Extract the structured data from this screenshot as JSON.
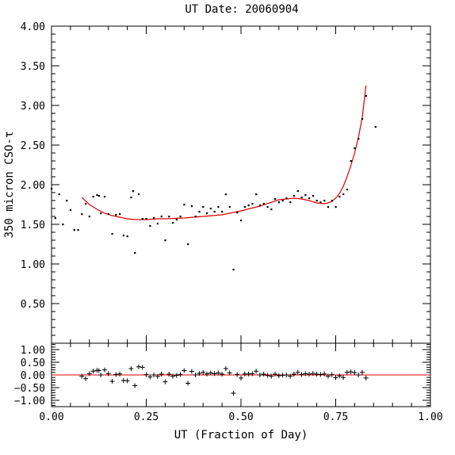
{
  "chart_data": [
    {
      "type": "scatter",
      "panel": "main",
      "title": "UT Date: 20060904",
      "xlabel": "",
      "ylabel": "350 micron CSO-τ",
      "xlim": [
        0.0,
        1.0
      ],
      "ylim": [
        0.0,
        4.0
      ],
      "yticks": [
        "0.50",
        "1.00",
        "1.50",
        "2.00",
        "2.50",
        "3.00",
        "3.50",
        "4.00"
      ],
      "grid": false,
      "colors": {
        "points": "#000000",
        "fit": "#e00000"
      },
      "series": [
        {
          "kind": "points",
          "x": [
            0.0,
            0.01,
            0.02,
            0.03,
            0.04,
            0.05,
            0.06,
            0.07,
            0.08,
            0.09,
            0.1,
            0.11,
            0.12,
            0.125,
            0.13,
            0.14,
            0.15,
            0.16,
            0.17,
            0.18,
            0.19,
            0.2,
            0.21,
            0.215,
            0.22,
            0.23,
            0.24,
            0.25,
            0.26,
            0.27,
            0.28,
            0.29,
            0.3,
            0.31,
            0.32,
            0.33,
            0.34,
            0.35,
            0.36,
            0.37,
            0.38,
            0.39,
            0.4,
            0.41,
            0.42,
            0.43,
            0.44,
            0.45,
            0.46,
            0.47,
            0.48,
            0.49,
            0.5,
            0.51,
            0.52,
            0.53,
            0.54,
            0.55,
            0.56,
            0.57,
            0.58,
            0.59,
            0.6,
            0.61,
            0.62,
            0.63,
            0.64,
            0.65,
            0.66,
            0.67,
            0.68,
            0.69,
            0.7,
            0.71,
            0.72,
            0.73,
            0.74,
            0.75,
            0.76,
            0.77,
            0.78,
            0.79,
            0.8,
            0.81,
            0.82,
            0.83,
            0.855
          ],
          "y": [
            1.95,
            1.58,
            1.88,
            1.5,
            1.8,
            1.68,
            1.43,
            1.43,
            1.63,
            1.76,
            1.6,
            1.85,
            1.87,
            1.86,
            1.64,
            1.85,
            1.63,
            1.38,
            1.62,
            1.63,
            1.36,
            1.35,
            1.84,
            1.92,
            1.14,
            1.88,
            1.57,
            1.57,
            1.48,
            1.58,
            1.51,
            1.6,
            1.3,
            1.6,
            1.52,
            1.56,
            1.6,
            1.75,
            1.25,
            1.73,
            1.6,
            1.66,
            1.72,
            1.64,
            1.7,
            1.66,
            1.72,
            1.66,
            1.88,
            1.72,
            0.93,
            1.65,
            1.55,
            1.72,
            1.74,
            1.76,
            1.88,
            1.74,
            1.76,
            1.72,
            1.69,
            1.82,
            1.78,
            1.8,
            1.83,
            1.78,
            1.86,
            1.92,
            1.84,
            1.87,
            1.83,
            1.86,
            1.8,
            1.78,
            1.8,
            1.72,
            1.8,
            1.72,
            1.85,
            1.88,
            1.94,
            2.3,
            2.46,
            2.58,
            2.83,
            3.12,
            2.73
          ]
        },
        {
          "kind": "fit",
          "x": [
            0.08,
            0.1,
            0.12,
            0.14,
            0.16,
            0.18,
            0.2,
            0.22,
            0.25,
            0.28,
            0.3,
            0.35,
            0.4,
            0.45,
            0.5,
            0.55,
            0.6,
            0.62,
            0.64,
            0.66,
            0.68,
            0.7,
            0.72,
            0.73,
            0.74,
            0.75,
            0.76,
            0.77,
            0.78,
            0.79,
            0.8,
            0.81,
            0.82,
            0.83
          ],
          "y": [
            1.84,
            1.75,
            1.69,
            1.64,
            1.61,
            1.59,
            1.57,
            1.56,
            1.56,
            1.57,
            1.57,
            1.58,
            1.6,
            1.62,
            1.67,
            1.73,
            1.81,
            1.82,
            1.83,
            1.82,
            1.8,
            1.77,
            1.76,
            1.77,
            1.79,
            1.83,
            1.89,
            1.98,
            2.1,
            2.24,
            2.4,
            2.6,
            2.85,
            3.25
          ]
        }
      ]
    },
    {
      "type": "scatter",
      "panel": "residuals",
      "title": "",
      "xlabel": "UT (Fraction of Day)",
      "ylabel": "",
      "xlim": [
        0.0,
        1.0
      ],
      "ylim": [
        -1.25,
        1.25
      ],
      "xticks": [
        "0.00",
        "0.25",
        "0.50",
        "0.75",
        "1.00"
      ],
      "yticks": [
        "−1.00",
        "−0.50",
        "0.00",
        "0.50",
        "1.00"
      ],
      "ytick_values": [
        -1.0,
        -0.5,
        0.0,
        0.5,
        1.0
      ],
      "grid": false,
      "zero_line": 0.0,
      "colors": {
        "points": "#000000",
        "zero_line": "#e00000"
      },
      "series": [
        {
          "kind": "points",
          "x": [
            0.08,
            0.09,
            0.1,
            0.11,
            0.12,
            0.125,
            0.13,
            0.14,
            0.15,
            0.16,
            0.17,
            0.18,
            0.19,
            0.2,
            0.21,
            0.22,
            0.23,
            0.24,
            0.25,
            0.26,
            0.27,
            0.28,
            0.29,
            0.3,
            0.31,
            0.32,
            0.33,
            0.34,
            0.35,
            0.36,
            0.37,
            0.38,
            0.39,
            0.4,
            0.41,
            0.42,
            0.43,
            0.44,
            0.45,
            0.46,
            0.47,
            0.48,
            0.49,
            0.5,
            0.51,
            0.52,
            0.53,
            0.54,
            0.55,
            0.56,
            0.57,
            0.58,
            0.59,
            0.6,
            0.61,
            0.62,
            0.63,
            0.64,
            0.65,
            0.66,
            0.67,
            0.68,
            0.69,
            0.7,
            0.71,
            0.72,
            0.73,
            0.74,
            0.75,
            0.76,
            0.77,
            0.78,
            0.79,
            0.8,
            0.81,
            0.82,
            0.83
          ],
          "y": [
            -0.05,
            -0.15,
            0.05,
            0.15,
            0.18,
            0.17,
            0.0,
            0.2,
            0.05,
            -0.25,
            0.02,
            0.04,
            -0.22,
            -0.23,
            0.25,
            -0.42,
            0.32,
            0.3,
            0.01,
            -0.08,
            0.0,
            -0.06,
            0.03,
            -0.27,
            0.03,
            -0.05,
            -0.02,
            0.02,
            0.17,
            -0.33,
            0.14,
            0.0,
            0.06,
            0.1,
            0.04,
            0.08,
            0.05,
            0.08,
            0.03,
            0.25,
            0.08,
            -0.72,
            0.02,
            -0.12,
            0.04,
            0.04,
            0.05,
            0.15,
            0.0,
            0.03,
            -0.02,
            -0.05,
            0.03,
            -0.03,
            -0.01,
            0.0,
            -0.05,
            0.03,
            0.1,
            0.02,
            0.05,
            0.03,
            0.06,
            0.03,
            0.02,
            0.04,
            -0.05,
            0.01,
            -0.11,
            -0.04,
            -0.1,
            0.1,
            0.12,
            0.09,
            0.0,
            0.1,
            -0.12
          ]
        }
      ]
    }
  ]
}
